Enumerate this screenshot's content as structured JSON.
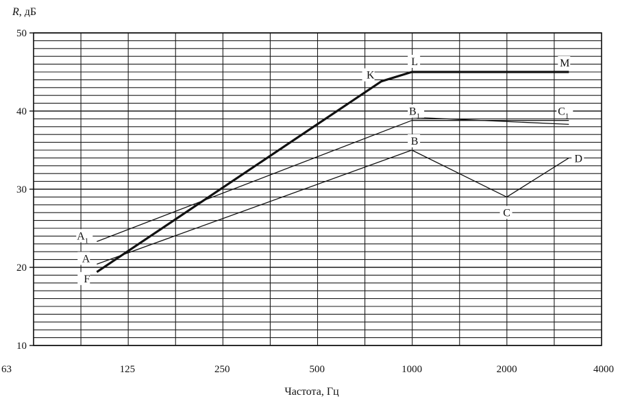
{
  "chart_data": {
    "type": "line",
    "ylabel_italic": "R",
    "ylabel_unit": ", дБ",
    "xlabel": "Частота,  Гц",
    "x_scale": "log2",
    "x_ticks": [
      "63",
      "125",
      "250",
      "500",
      "1000",
      "2000",
      "4000"
    ],
    "x_tick_values": [
      63,
      125,
      250,
      500,
      1000,
      2000,
      4000
    ],
    "xlim": [
      63,
      4000
    ],
    "y_ticks": [
      "10",
      "20",
      "30",
      "40",
      "50"
    ],
    "y_tick_values": [
      10,
      20,
      30,
      40,
      50
    ],
    "ylim": [
      10,
      50
    ],
    "grid": true,
    "series": [
      {
        "style": "bold",
        "points": [
          {
            "x": 100,
            "y": 19.4,
            "label": "F"
          },
          {
            "x": 800,
            "y": 43.8,
            "label": "K"
          },
          {
            "x": 1000,
            "y": 45,
            "label": "L"
          },
          {
            "x": 3150,
            "y": 45,
            "label": "M"
          }
        ]
      },
      {
        "style": "thin",
        "points": [
          {
            "x": 100,
            "y": 23.3,
            "label": "A",
            "sub": "1"
          },
          {
            "x": 1000,
            "y": 38.8,
            "label": "B",
            "sub": "1"
          },
          {
            "x": 3150,
            "y": 38.8,
            "label": "C",
            "sub": "1"
          }
        ]
      },
      {
        "style": "thin-double",
        "points": [
          {
            "x": 1000,
            "y": 39.2
          },
          {
            "x": 3150,
            "y": 38.3
          }
        ]
      },
      {
        "style": "thin",
        "points": [
          {
            "x": 100,
            "y": 20.4,
            "label": "A"
          },
          {
            "x": 1000,
            "y": 35,
            "label": "B"
          },
          {
            "x": 2000,
            "y": 29,
            "label": "C"
          },
          {
            "x": 3150,
            "y": 34,
            "label": "D"
          }
        ]
      }
    ]
  }
}
